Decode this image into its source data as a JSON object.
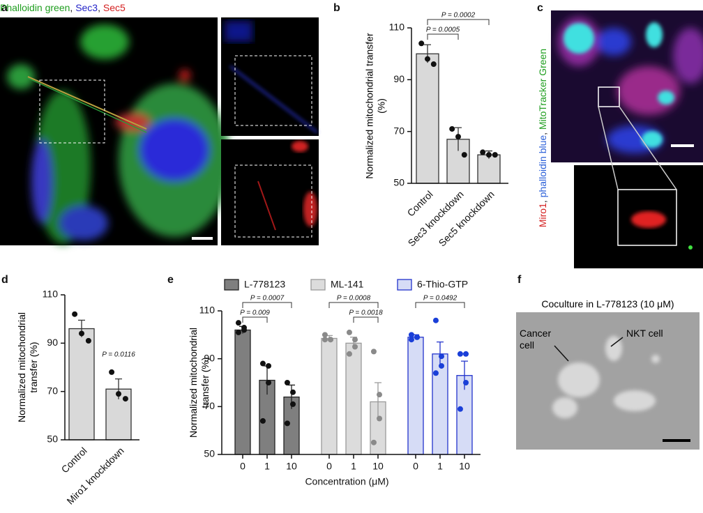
{
  "panel_labels": [
    "a",
    "b",
    "c",
    "d",
    "e",
    "f"
  ],
  "figure_a": {
    "caption": [
      {
        "text": "Phalloidin green",
        "color": "#1f9e1f"
      },
      {
        "text": ", ",
        "color": "#222222"
      },
      {
        "text": "Sec3",
        "color": "#2424c8"
      },
      {
        "text": ", ",
        "color": "#222222"
      },
      {
        "text": "Sec5",
        "color": "#d42020"
      }
    ]
  },
  "figure_c": {
    "caption": [
      {
        "text": "Miro1",
        "color": "#d42020"
      },
      {
        "text": ", ",
        "color": "#222222"
      },
      {
        "text": "phalloidin blue",
        "color": "#2a5fd8"
      },
      {
        "text": ", ",
        "color": "#222222"
      },
      {
        "text": "MitoTracker Green",
        "color": "#1f9e1f"
      }
    ]
  },
  "figure_f": {
    "title": "Coculture in L-778123 (10 μM)",
    "labels": [
      "Cancer cell",
      "NKT cell"
    ]
  },
  "chart_data": [
    {
      "type": "bar",
      "ylabel": "Normalized mitochondrial transfer (%)",
      "categories": [
        "Control",
        "Sec3 knockdown",
        "Sec5 knockdown"
      ],
      "values": [
        100,
        67,
        61
      ],
      "errors": [
        3.5,
        4.5,
        1.5
      ],
      "points": [
        [
          104,
          98,
          96
        ],
        [
          71,
          68,
          61
        ],
        [
          62,
          61,
          61
        ]
      ],
      "color": "#d9d9d9",
      "edge": "#333333",
      "point_color": "#111111",
      "ylim": [
        50,
        110
      ],
      "yticks": [
        50,
        70,
        90,
        110
      ],
      "comparisons": [
        {
          "label": "P = 0.0002",
          "between": [
            0,
            2
          ]
        },
        {
          "label": "P = 0.0005",
          "between": [
            0,
            1
          ]
        }
      ]
    },
    {
      "type": "bar",
      "ylabel": "Normalized mitochondrial transfer (%)",
      "categories": [
        "Control",
        "Miro1 knockdown"
      ],
      "values": [
        96,
        71
      ],
      "errors": [
        3.5,
        4.2
      ],
      "points": [
        [
          102,
          94,
          91
        ],
        [
          78,
          69,
          67
        ]
      ],
      "color": "#d9d9d9",
      "edge": "#333333",
      "point_color": "#111111",
      "ylim": [
        50,
        110
      ],
      "yticks": [
        50,
        70,
        90,
        110
      ],
      "comparisons": [
        {
          "label": "P = 0.0116",
          "at": 1
        }
      ]
    },
    {
      "type": "bar",
      "ylabel": "Normalized mitochondrial transfer (%)",
      "xlabel": "Concentration (μM)",
      "categories": [
        "0",
        "1",
        "10"
      ],
      "ylim": [
        50,
        110
      ],
      "yticks": [
        50,
        70,
        90,
        110
      ],
      "series": [
        {
          "name": "L-778123",
          "color": "#7f7f7f",
          "edge": "#222222",
          "point_color": "#111111",
          "values": [
            102,
            81,
            74
          ],
          "errors": [
            1.5,
            6,
            5
          ],
          "points": [
            [
              105,
              103,
              102,
              101
            ],
            [
              88,
              87,
              80,
              64
            ],
            [
              80,
              76,
              71,
              63
            ]
          ],
          "comparisons": [
            {
              "label": "P = 0.0007",
              "between": [
                0,
                2
              ]
            },
            {
              "label": "P = 0.009",
              "between": [
                0,
                1
              ]
            }
          ]
        },
        {
          "name": "ML-141",
          "color": "#dcdcdc",
          "edge": "#9a9a9a",
          "point_color": "#8a8a8a",
          "values": [
            98.5,
            96.5,
            72
          ],
          "errors": [
            1.2,
            2.5,
            8
          ],
          "points": [
            [
              100,
              98,
              98,
              98
            ],
            [
              101,
              98,
              95,
              92
            ],
            [
              93,
              75,
              65,
              55
            ]
          ],
          "comparisons": [
            {
              "label": "P = 0.0008",
              "between": [
                0,
                2
              ]
            },
            {
              "label": "P = 0.0018",
              "between": [
                1,
                2
              ]
            }
          ]
        },
        {
          "name": "6-Thio-GTP",
          "color": "#d6dcf6",
          "edge": "#2233cc",
          "point_color": "#1a3fd8",
          "values": [
            99,
            92,
            83
          ],
          "errors": [
            1,
            5,
            6
          ],
          "points": [
            [
              100,
              99,
              99,
              98
            ],
            [
              106,
              91,
              87,
              84
            ],
            [
              92,
              92,
              80,
              69
            ]
          ],
          "comparisons": [
            {
              "label": "P = 0.0492",
              "between": [
                0,
                2
              ]
            }
          ]
        }
      ]
    }
  ]
}
